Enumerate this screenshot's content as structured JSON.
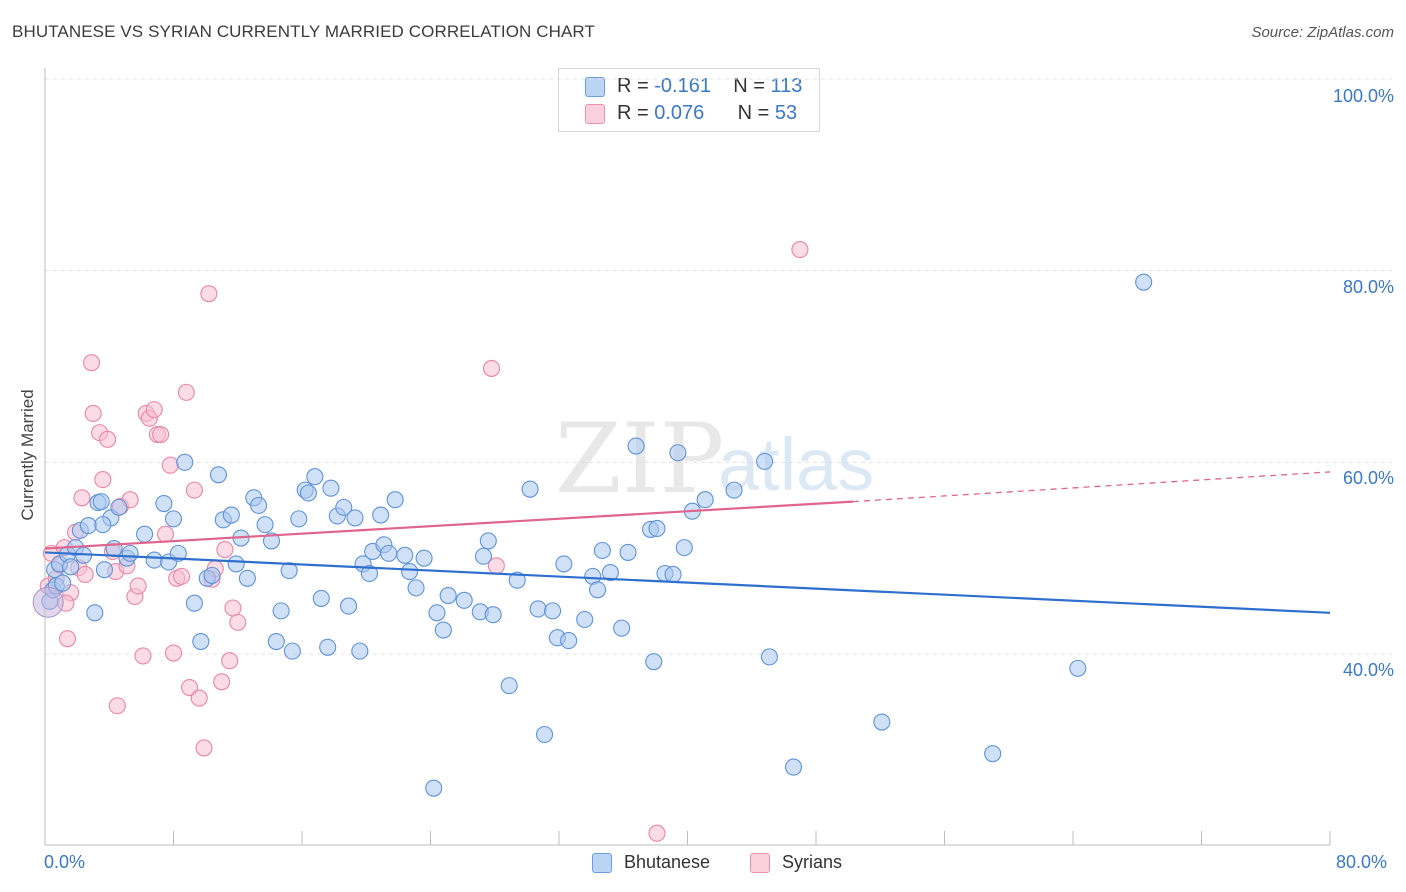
{
  "header": {
    "title": "BHUTANESE VS SYRIAN CURRENTLY MARRIED CORRELATION CHART",
    "source": "Source: ZipAtlas.com"
  },
  "watermark": {
    "zip": "ZIP",
    "atlas": "atlas"
  },
  "legend": {
    "bhutanese": {
      "r_label": "R =",
      "r_value": "-0.161",
      "n_label": "N =",
      "n_value": "113"
    },
    "syrians": {
      "r_label": "R =",
      "r_value": "0.076",
      "n_label": "N =",
      "n_value": "53"
    }
  },
  "colors": {
    "blue_fill": "#a9c8f0",
    "blue_stroke": "#5f93d9",
    "blue_line": "#2f6fce",
    "pink_fill": "#f8bfd1",
    "pink_stroke": "#ea86a6",
    "pink_line": "#e0658e",
    "tick_text": "#3a78c9",
    "grid": "#e3e3e3"
  },
  "chart_data": {
    "type": "scatter",
    "title": "BHUTANESE VS SYRIAN CURRENTLY MARRIED CORRELATION CHART",
    "xlabel": "",
    "ylabel": "Currently Married",
    "xlim": [
      0,
      80
    ],
    "ylim": [
      20,
      100
    ],
    "x_tick_labels": [
      {
        "value": 0,
        "label": "0.0%"
      },
      {
        "value": 80,
        "label": "80.0%"
      }
    ],
    "y_tick_labels": [
      {
        "value": 100,
        "label": "100.0%"
      },
      {
        "value": 80,
        "label": "80.0%"
      },
      {
        "value": 60,
        "label": "60.0%"
      },
      {
        "value": 40,
        "label": "40.0%"
      }
    ],
    "x_minor_ticks": [
      0,
      8,
      16,
      24,
      32,
      40,
      48,
      56,
      64,
      72,
      80
    ],
    "grid": true,
    "series": [
      {
        "name": "Bhutanese",
        "color": "#a9c8f0",
        "trend": {
          "x": [
            0,
            80
          ],
          "y": [
            50.6,
            44.3
          ],
          "dashed_beyond": null
        },
        "points": [
          [
            0.3,
            45.5
          ],
          [
            0.5,
            46.7
          ],
          [
            0.6,
            48.8
          ],
          [
            0.7,
            47.1
          ],
          [
            0.9,
            49.4
          ],
          [
            1.1,
            47.4
          ],
          [
            1.4,
            50.4
          ],
          [
            1.6,
            49.1
          ],
          [
            1.9,
            51.1
          ],
          [
            2.2,
            52.9
          ],
          [
            2.4,
            50.3
          ],
          [
            2.7,
            53.4
          ],
          [
            3.1,
            44.3
          ],
          [
            3.3,
            55.8
          ],
          [
            3.5,
            55.9
          ],
          [
            3.7,
            48.8
          ],
          [
            4.1,
            54.2
          ],
          [
            4.3,
            51.0
          ],
          [
            4.6,
            55.3
          ],
          [
            5.1,
            50.0
          ],
          [
            5.3,
            50.5
          ],
          [
            6.2,
            52.5
          ],
          [
            6.8,
            49.8
          ],
          [
            7.4,
            55.7
          ],
          [
            7.7,
            49.6
          ],
          [
            8.0,
            54.1
          ],
          [
            8.3,
            50.5
          ],
          [
            8.7,
            60.0
          ],
          [
            9.3,
            45.3
          ],
          [
            9.7,
            41.3
          ],
          [
            10.1,
            47.9
          ],
          [
            10.4,
            48.2
          ],
          [
            10.8,
            58.7
          ],
          [
            11.1,
            54.0
          ],
          [
            11.6,
            54.5
          ],
          [
            11.9,
            49.4
          ],
          [
            12.2,
            52.1
          ],
          [
            12.6,
            47.9
          ],
          [
            13.0,
            56.3
          ],
          [
            13.3,
            55.5
          ],
          [
            13.7,
            53.5
          ],
          [
            14.1,
            51.8
          ],
          [
            14.4,
            41.3
          ],
          [
            14.7,
            44.5
          ],
          [
            15.2,
            48.7
          ],
          [
            15.4,
            40.3
          ],
          [
            15.8,
            54.1
          ],
          [
            16.2,
            57.1
          ],
          [
            16.4,
            56.8
          ],
          [
            16.8,
            58.5
          ],
          [
            17.2,
            45.8
          ],
          [
            17.6,
            40.7
          ],
          [
            17.8,
            57.3
          ],
          [
            18.2,
            54.4
          ],
          [
            18.6,
            55.3
          ],
          [
            18.9,
            45.0
          ],
          [
            19.3,
            54.2
          ],
          [
            19.6,
            40.3
          ],
          [
            19.8,
            49.4
          ],
          [
            20.2,
            48.4
          ],
          [
            20.4,
            50.7
          ],
          [
            20.9,
            54.5
          ],
          [
            21.1,
            51.4
          ],
          [
            21.4,
            50.5
          ],
          [
            21.8,
            56.1
          ],
          [
            22.4,
            50.3
          ],
          [
            22.7,
            48.6
          ],
          [
            23.1,
            46.9
          ],
          [
            23.6,
            50.0
          ],
          [
            24.2,
            26.0
          ],
          [
            24.4,
            44.3
          ],
          [
            24.8,
            42.5
          ],
          [
            25.1,
            46.1
          ],
          [
            26.1,
            45.6
          ],
          [
            27.1,
            44.4
          ],
          [
            27.3,
            50.2
          ],
          [
            27.6,
            51.8
          ],
          [
            27.9,
            44.1
          ],
          [
            28.9,
            36.7
          ],
          [
            29.4,
            47.7
          ],
          [
            30.2,
            57.2
          ],
          [
            30.7,
            44.7
          ],
          [
            31.1,
            31.6
          ],
          [
            31.6,
            44.5
          ],
          [
            31.9,
            41.7
          ],
          [
            32.3,
            49.4
          ],
          [
            32.6,
            41.4
          ],
          [
            33.6,
            43.6
          ],
          [
            34.1,
            48.1
          ],
          [
            34.4,
            46.7
          ],
          [
            34.7,
            50.8
          ],
          [
            35.2,
            48.5
          ],
          [
            35.9,
            42.7
          ],
          [
            36.3,
            50.6
          ],
          [
            36.8,
            61.7
          ],
          [
            37.7,
            53.0
          ],
          [
            37.9,
            39.2
          ],
          [
            38.1,
            53.1
          ],
          [
            38.6,
            48.4
          ],
          [
            39.1,
            48.3
          ],
          [
            39.4,
            61.0
          ],
          [
            39.8,
            51.1
          ],
          [
            40.3,
            54.9
          ],
          [
            41.1,
            56.1
          ],
          [
            42.9,
            57.1
          ],
          [
            44.8,
            60.1
          ],
          [
            45.1,
            39.7
          ],
          [
            46.6,
            28.2
          ],
          [
            52.1,
            32.9
          ],
          [
            59.0,
            29.6
          ],
          [
            64.3,
            38.5
          ],
          [
            68.4,
            78.8
          ],
          [
            3.6,
            53.5
          ]
        ]
      },
      {
        "name": "Syrians",
        "color": "#f8bfd1",
        "trend": {
          "x": [
            0,
            50.3
          ],
          "y": [
            51.0,
            55.9
          ],
          "dashed_x": [
            50.3,
            80
          ],
          "dashed_y": [
            55.9,
            59.0
          ]
        },
        "points": [
          [
            0.2,
            47.1
          ],
          [
            0.4,
            50.5
          ],
          [
            0.7,
            47.9
          ],
          [
            0.9,
            49.3
          ],
          [
            1.2,
            51.1
          ],
          [
            1.4,
            41.6
          ],
          [
            1.6,
            46.4
          ],
          [
            1.9,
            52.7
          ],
          [
            2.1,
            49.0
          ],
          [
            2.3,
            56.3
          ],
          [
            2.5,
            48.3
          ],
          [
            2.9,
            70.4
          ],
          [
            3.0,
            65.1
          ],
          [
            3.4,
            63.1
          ],
          [
            3.6,
            58.2
          ],
          [
            3.9,
            62.4
          ],
          [
            4.2,
            50.7
          ],
          [
            4.4,
            48.6
          ],
          [
            4.5,
            34.6
          ],
          [
            4.7,
            55.4
          ],
          [
            5.1,
            49.2
          ],
          [
            5.3,
            56.1
          ],
          [
            5.6,
            46.0
          ],
          [
            5.8,
            47.1
          ],
          [
            6.1,
            39.8
          ],
          [
            6.3,
            65.1
          ],
          [
            6.5,
            64.6
          ],
          [
            6.8,
            65.5
          ],
          [
            7.0,
            62.9
          ],
          [
            7.2,
            62.9
          ],
          [
            7.5,
            52.5
          ],
          [
            7.8,
            59.7
          ],
          [
            8.0,
            40.1
          ],
          [
            8.2,
            47.9
          ],
          [
            8.5,
            48.1
          ],
          [
            8.8,
            67.3
          ],
          [
            9.0,
            36.5
          ],
          [
            9.3,
            57.1
          ],
          [
            9.6,
            35.4
          ],
          [
            9.9,
            30.2
          ],
          [
            10.2,
            77.6
          ],
          [
            10.4,
            47.8
          ],
          [
            10.6,
            48.9
          ],
          [
            11.0,
            37.1
          ],
          [
            11.2,
            50.9
          ],
          [
            11.5,
            39.3
          ],
          [
            11.7,
            44.8
          ],
          [
            12.0,
            43.3
          ],
          [
            27.8,
            69.8
          ],
          [
            28.1,
            49.2
          ],
          [
            38.1,
            21.3
          ],
          [
            47.0,
            82.2
          ],
          [
            1.3,
            45.3
          ]
        ]
      }
    ]
  }
}
